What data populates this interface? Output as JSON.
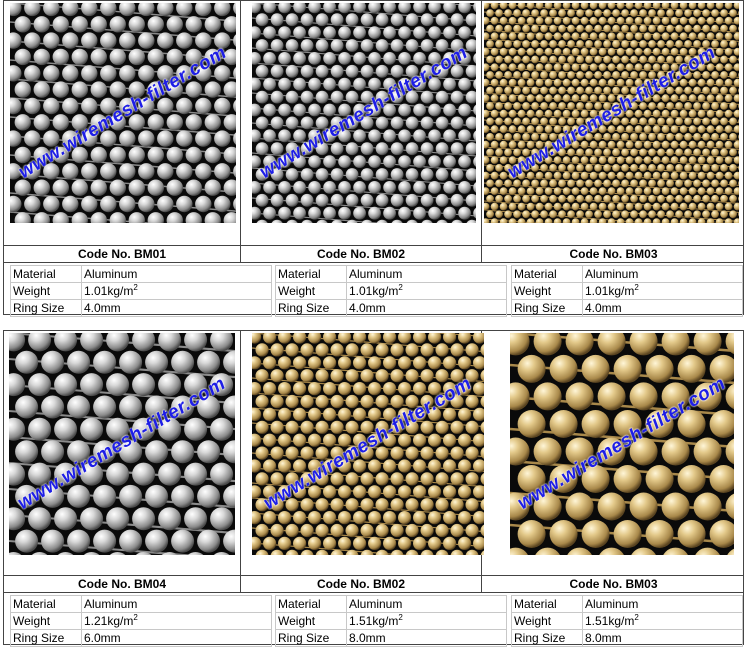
{
  "watermark_text": "www.wiremesh-filter.com",
  "rows": [
    {
      "products": [
        {
          "code": "Code No. BM01",
          "tone": "silver",
          "material_label": "Material",
          "material": "Aluminum",
          "weight_label": "Weight",
          "weight": "1.01kg/m",
          "weight_unit_exp": "2",
          "ring_label": "Ring Size",
          "ring": "4.0mm"
        },
        {
          "code": "Code No. BM02",
          "tone": "silver",
          "material_label": "Material",
          "material": "Aluminum",
          "weight_label": "Weight",
          "weight": "1.01kg/m",
          "weight_unit_exp": "2",
          "ring_label": "Ring Size",
          "ring": "4.0mm"
        },
        {
          "code": "Code No. BM03",
          "tone": "gold",
          "material_label": "Material",
          "material": "Aluminum",
          "weight_label": "Weight",
          "weight": "1.01kg/m",
          "weight_unit_exp": "2",
          "ring_label": "Ring Size",
          "ring": "4.0mm"
        }
      ]
    },
    {
      "products": [
        {
          "code": "Code No. BM04",
          "tone": "silver",
          "material_label": "Material",
          "material": "Aluminum",
          "weight_label": "Weight",
          "weight": "1.21kg/m",
          "weight_unit_exp": "2",
          "ring_label": "Ring Size",
          "ring": "6.0mm"
        },
        {
          "code": "Code No. BM02",
          "tone": "gold",
          "material_label": "Material",
          "material": "Aluminum",
          "weight_label": "Weight",
          "weight": "1.51kg/m",
          "weight_unit_exp": "2",
          "ring_label": "Ring Size",
          "ring": "8.0mm"
        },
        {
          "code": "Code No. BM03",
          "tone": "gold",
          "material_label": "Material",
          "material": "Aluminum",
          "weight_label": "Weight",
          "weight": "1.51kg/m",
          "weight_unit_exp": "2",
          "ring_label": "Ring Size",
          "ring": "8.0mm"
        }
      ]
    }
  ],
  "colors": {
    "watermark": "#1e1ee6",
    "border": "#444444",
    "grid": "#c8c8c8",
    "gap": "#0a0a0a"
  }
}
